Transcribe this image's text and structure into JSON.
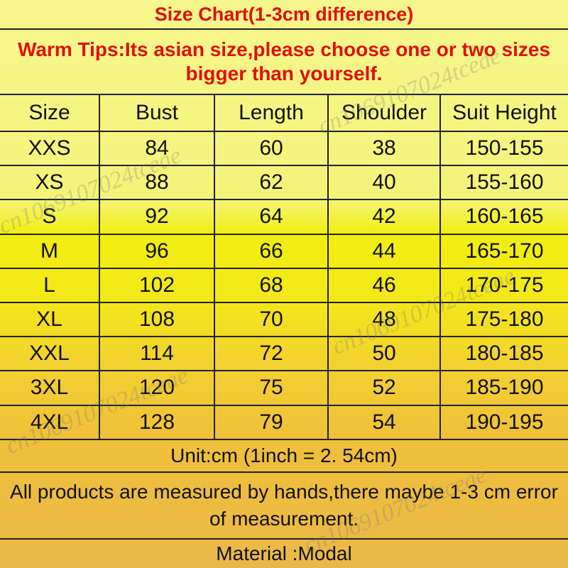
{
  "title": "Size Chart(1-3cm difference)",
  "tips": "Warm Tips:Its asian size,please choose one or two sizes bigger than yourself.",
  "headers": [
    "Size",
    "Bust",
    "Length",
    "Shoulder",
    "Suit Height"
  ],
  "rows": [
    [
      "XXS",
      "84",
      "60",
      "38",
      "150-155"
    ],
    [
      "XS",
      "88",
      "62",
      "40",
      "155-160"
    ],
    [
      "S",
      "92",
      "64",
      "42",
      "160-165"
    ],
    [
      "M",
      "96",
      "66",
      "44",
      "165-170"
    ],
    [
      "L",
      "102",
      "68",
      "46",
      "170-175"
    ],
    [
      "XL",
      "108",
      "70",
      "48",
      "175-180"
    ],
    [
      "XXL",
      "114",
      "72",
      "50",
      "180-185"
    ],
    [
      "3XL",
      "120",
      "75",
      "52",
      "185-190"
    ],
    [
      "4XL",
      "128",
      "79",
      "54",
      "190-195"
    ]
  ],
  "unit": "Unit:cm (1inch = 2. 54cm)",
  "note": "All products are measured by hands,there maybe 1-3 cm error of measurement.",
  "material": "Material :Modal",
  "watermark": "cn1069107024tceae",
  "colors": {
    "title": "#e01010",
    "text": "#111111",
    "border": "#222222"
  }
}
